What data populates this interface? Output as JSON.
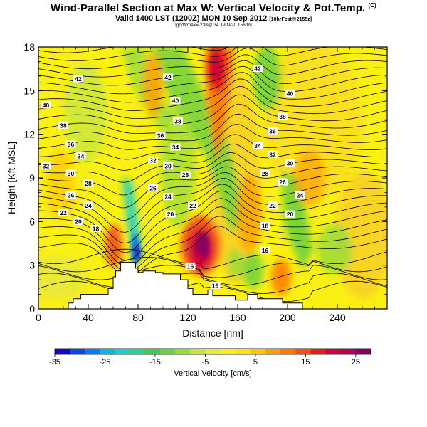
{
  "title": "Wind-Parallel Section at Max W: Vertical Velocity & Pot.Temp.",
  "title_mark": "(C)",
  "subtitle": "Valid 1400 LST (1200Z) MON 10 Sep 2012",
  "subtitle_small": "[10hrFcst@2155z]",
  "subtitle2": "lgn/Wmax=-238@ 34.19,N/20.156 fm",
  "chart_data": {
    "type": "heatmap",
    "xlabel": "Distance [nm]",
    "ylabel": "Height [Kft MSL]",
    "xlim": [
      0,
      280
    ],
    "ylim": [
      0,
      18
    ],
    "xticks": [
      "0",
      "40",
      "80",
      "120",
      "160",
      "200",
      "240"
    ],
    "yticks": [
      "0",
      "3",
      "6",
      "9",
      "12",
      "15",
      "18"
    ],
    "terrain": [
      [
        0,
        0
      ],
      [
        24,
        0
      ],
      [
        24,
        0.4
      ],
      [
        28,
        0.4
      ],
      [
        28,
        0.7
      ],
      [
        34,
        0.7
      ],
      [
        34,
        1.0
      ],
      [
        56,
        1.0
      ],
      [
        56,
        1.4
      ],
      [
        60,
        1.4
      ],
      [
        60,
        2.2
      ],
      [
        62,
        2.2
      ],
      [
        62,
        2.6
      ],
      [
        66,
        2.6
      ],
      [
        66,
        3.2
      ],
      [
        78,
        3.2
      ],
      [
        78,
        2.8
      ],
      [
        80,
        2.8
      ],
      [
        80,
        2.5
      ],
      [
        84,
        2.5
      ],
      [
        84,
        2.6
      ],
      [
        94,
        2.6
      ],
      [
        94,
        2.5
      ],
      [
        100,
        2.5
      ],
      [
        100,
        2.4
      ],
      [
        114,
        2.4
      ],
      [
        114,
        2.0
      ],
      [
        120,
        2.0
      ],
      [
        120,
        1.4
      ],
      [
        124,
        1.4
      ],
      [
        124,
        1.0
      ],
      [
        136,
        1.0
      ],
      [
        136,
        1.3
      ],
      [
        140,
        1.3
      ],
      [
        140,
        0.9
      ],
      [
        158,
        0.9
      ],
      [
        158,
        0.6
      ],
      [
        168,
        0.6
      ],
      [
        168,
        1.0
      ],
      [
        176,
        1.0
      ],
      [
        176,
        0.7
      ],
      [
        196,
        0.7
      ],
      [
        196,
        0.4
      ],
      [
        212,
        0.4
      ],
      [
        212,
        0
      ],
      [
        280,
        0
      ]
    ],
    "contour_labels": [
      {
        "v": "42",
        "x": 32,
        "y": 15.8
      },
      {
        "v": "42",
        "x": 104,
        "y": 15.9
      },
      {
        "v": "42",
        "x": 176,
        "y": 16.5
      },
      {
        "v": "40",
        "x": 6,
        "y": 14.0
      },
      {
        "v": "40",
        "x": 110,
        "y": 14.3
      },
      {
        "v": "40",
        "x": 202,
        "y": 14.8
      },
      {
        "v": "38",
        "x": 20,
        "y": 12.6
      },
      {
        "v": "38",
        "x": 112,
        "y": 12.9
      },
      {
        "v": "38",
        "x": 196,
        "y": 13.2
      },
      {
        "v": "36",
        "x": 26,
        "y": 11.3
      },
      {
        "v": "36",
        "x": 98,
        "y": 11.9
      },
      {
        "v": "36",
        "x": 188,
        "y": 12.2
      },
      {
        "v": "34",
        "x": 34,
        "y": 10.5
      },
      {
        "v": "34",
        "x": 110,
        "y": 11.1
      },
      {
        "v": "34",
        "x": 176,
        "y": 11.2
      },
      {
        "v": "32",
        "x": 6,
        "y": 9.8
      },
      {
        "v": "32",
        "x": 92,
        "y": 10.2
      },
      {
        "v": "32",
        "x": 188,
        "y": 10.6
      },
      {
        "v": "30",
        "x": 26,
        "y": 9.3
      },
      {
        "v": "30",
        "x": 104,
        "y": 9.8
      },
      {
        "v": "30",
        "x": 202,
        "y": 10.0
      },
      {
        "v": "28",
        "x": 40,
        "y": 8.6
      },
      {
        "v": "28",
        "x": 118,
        "y": 9.2
      },
      {
        "v": "28",
        "x": 182,
        "y": 9.3
      },
      {
        "v": "26",
        "x": 26,
        "y": 7.8
      },
      {
        "v": "26",
        "x": 92,
        "y": 8.3
      },
      {
        "v": "26",
        "x": 196,
        "y": 8.7
      },
      {
        "v": "24",
        "x": 40,
        "y": 7.1
      },
      {
        "v": "24",
        "x": 104,
        "y": 7.7
      },
      {
        "v": "24",
        "x": 210,
        "y": 7.8
      },
      {
        "v": "22",
        "x": 20,
        "y": 6.6
      },
      {
        "v": "22",
        "x": 124,
        "y": 7.1
      },
      {
        "v": "22",
        "x": 188,
        "y": 7.1
      },
      {
        "v": "20",
        "x": 32,
        "y": 6.0
      },
      {
        "v": "20",
        "x": 106,
        "y": 6.5
      },
      {
        "v": "20",
        "x": 202,
        "y": 6.5
      },
      {
        "v": "18",
        "x": 46,
        "y": 5.5
      },
      {
        "v": "18",
        "x": 182,
        "y": 5.7
      },
      {
        "v": "16",
        "x": 122,
        "y": 2.9
      },
      {
        "v": "16",
        "x": 142,
        "y": 1.6
      },
      {
        "v": "16",
        "x": 182,
        "y": 4.0
      }
    ],
    "colorbar": {
      "label": "Vertical Velocity [cm/s]",
      "ticks": [
        "-35",
        "-25",
        "-15",
        "-5",
        "5",
        "15",
        "25"
      ],
      "range": [
        -35,
        28
      ],
      "colors": [
        "#1a00d2",
        "#0a46e6",
        "#0a7df0",
        "#0ab4e6",
        "#19d2c8",
        "#2dd296",
        "#41c85a",
        "#6ed23c",
        "#96dc3c",
        "#c3e646",
        "#e6eb3c",
        "#faf014",
        "#fae600",
        "#ffc800",
        "#ffa000",
        "#ff7800",
        "#f55014",
        "#e61e1e",
        "#d2003c",
        "#b40050",
        "#820064"
      ]
    }
  }
}
